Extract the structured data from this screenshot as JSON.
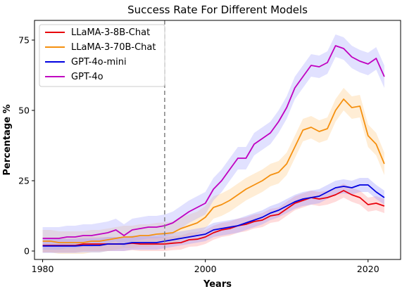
{
  "chart_data": {
    "type": "line",
    "title": "Success Rate For Different Models",
    "xlabel": "Years",
    "ylabel": "Percentage %",
    "xlim": [
      1979,
      2024
    ],
    "ylim": [
      -3,
      82
    ],
    "xticks": [
      1980,
      2000,
      2020
    ],
    "yticks": [
      0,
      25,
      50,
      75
    ],
    "grid": false,
    "legend_position": "top-left",
    "vline": {
      "x": 1995,
      "style": "dashed",
      "color": "#808080"
    },
    "x": [
      1980,
      1981,
      1982,
      1983,
      1984,
      1985,
      1986,
      1987,
      1988,
      1989,
      1990,
      1991,
      1992,
      1993,
      1994,
      1995,
      1996,
      1997,
      1998,
      1999,
      2000,
      2001,
      2002,
      2003,
      2004,
      2005,
      2006,
      2007,
      2008,
      2009,
      2010,
      2011,
      2012,
      2013,
      2014,
      2015,
      2016,
      2017,
      2018,
      2019,
      2020,
      2021,
      2022
    ],
    "series": [
      {
        "name": "LLaMA-3-8B-Chat",
        "color": "#e8000b",
        "values": [
          2,
          2,
          2,
          2,
          2,
          2.5,
          2.5,
          2.5,
          2.5,
          2.5,
          2.5,
          2.8,
          2.5,
          2.5,
          2.5,
          2.5,
          2.8,
          3,
          4,
          4.2,
          5,
          6.5,
          7.5,
          8,
          9,
          9.5,
          10.5,
          11,
          12.5,
          13,
          15,
          17,
          18,
          19,
          18.5,
          19,
          20,
          21.5,
          20,
          19,
          16.5,
          17,
          16
        ],
        "band": 2.5,
        "fill": "#ff9999"
      },
      {
        "name": "LLaMA-3-70B-Chat",
        "color": "#f5900f",
        "values": [
          3.5,
          3.5,
          3,
          3,
          3,
          3,
          3.5,
          3.5,
          4,
          4.5,
          5,
          5,
          5.5,
          5.5,
          6,
          6.2,
          6.5,
          8,
          9,
          10,
          12,
          15.5,
          16.5,
          18,
          20,
          22,
          23.5,
          25,
          27,
          28,
          31,
          37,
          43,
          44,
          42.5,
          43.5,
          50,
          54,
          51,
          51.5,
          41,
          38,
          31
        ],
        "band": 4,
        "fill": "#ffcc88"
      },
      {
        "name": "GPT-4o-mini",
        "color": "#0000e0",
        "values": [
          1.8,
          1.8,
          1.8,
          1.8,
          1.8,
          2,
          2,
          2,
          2.5,
          2.5,
          2.5,
          3,
          3,
          3,
          3,
          3.5,
          4,
          4.5,
          5,
          5.5,
          6,
          7.5,
          8,
          8.5,
          9,
          10,
          11,
          12,
          13.5,
          14.5,
          16,
          17.5,
          18.5,
          19,
          19.5,
          21,
          22.5,
          23,
          22.5,
          23.5,
          23.5,
          21,
          19
        ],
        "band": 2.5,
        "fill": "#9999ff"
      },
      {
        "name": "GPT-4o",
        "color": "#c000c0",
        "values": [
          4.5,
          4.5,
          4.5,
          5,
          5,
          5.5,
          5.5,
          6,
          6.5,
          7.5,
          5.5,
          7.5,
          8,
          8.5,
          8.5,
          9,
          10,
          12,
          14,
          15.5,
          17,
          22,
          25,
          29,
          33,
          33,
          38,
          40,
          42,
          46,
          51,
          58,
          62,
          66,
          65.5,
          67,
          73,
          72,
          69,
          67.5,
          66.5,
          68.5,
          62
        ],
        "band": 4,
        "fill": "#aaaaff"
      }
    ]
  }
}
